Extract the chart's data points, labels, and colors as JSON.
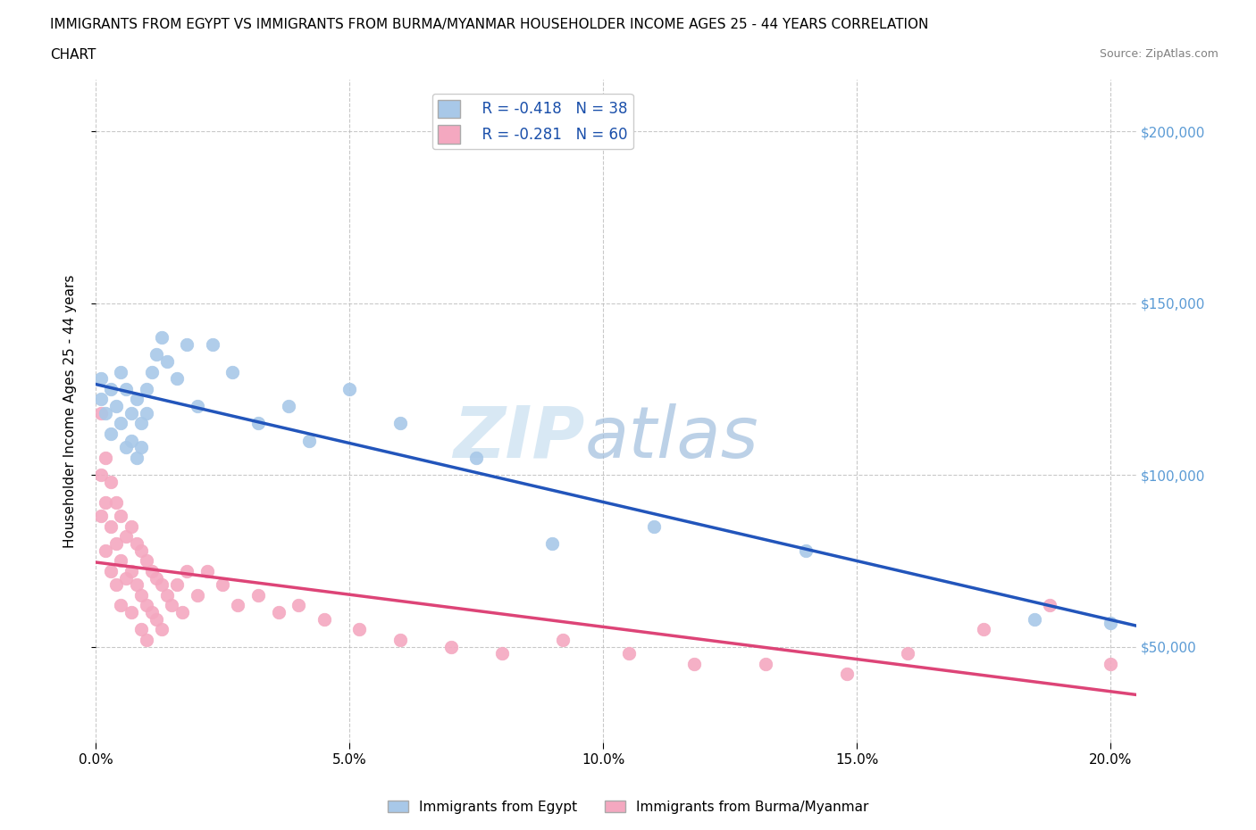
{
  "title_line1": "IMMIGRANTS FROM EGYPT VS IMMIGRANTS FROM BURMA/MYANMAR HOUSEHOLDER INCOME AGES 25 - 44 YEARS CORRELATION",
  "title_line2": "CHART",
  "source": "Source: ZipAtlas.com",
  "ylabel": "Householder Income Ages 25 - 44 years",
  "egypt_color": "#a8c8e8",
  "burma_color": "#f4a8c0",
  "egypt_line_color": "#2255bb",
  "burma_line_color": "#dd4477",
  "egypt_R": -0.418,
  "egypt_N": 38,
  "burma_R": -0.281,
  "burma_N": 60,
  "watermark_zip": "ZIP",
  "watermark_atlas": "atlas",
  "legend_egypt": "Immigrants from Egypt",
  "legend_burma": "Immigrants from Burma/Myanmar",
  "xlim": [
    0.0,
    0.205
  ],
  "ylim": [
    22000,
    215000
  ],
  "yticks": [
    50000,
    100000,
    150000,
    200000
  ],
  "xticks": [
    0.0,
    0.05,
    0.1,
    0.15,
    0.2
  ],
  "egypt_x": [
    0.001,
    0.001,
    0.002,
    0.003,
    0.003,
    0.004,
    0.005,
    0.005,
    0.006,
    0.006,
    0.007,
    0.007,
    0.008,
    0.008,
    0.009,
    0.009,
    0.01,
    0.01,
    0.011,
    0.012,
    0.013,
    0.014,
    0.016,
    0.018,
    0.02,
    0.023,
    0.027,
    0.032,
    0.038,
    0.042,
    0.05,
    0.06,
    0.075,
    0.09,
    0.11,
    0.14,
    0.185,
    0.2
  ],
  "egypt_y": [
    128000,
    122000,
    118000,
    125000,
    112000,
    120000,
    130000,
    115000,
    125000,
    108000,
    118000,
    110000,
    122000,
    105000,
    115000,
    108000,
    125000,
    118000,
    130000,
    135000,
    140000,
    133000,
    128000,
    138000,
    120000,
    138000,
    130000,
    115000,
    120000,
    110000,
    125000,
    115000,
    105000,
    80000,
    85000,
    78000,
    58000,
    57000
  ],
  "burma_x": [
    0.001,
    0.001,
    0.001,
    0.002,
    0.002,
    0.002,
    0.003,
    0.003,
    0.003,
    0.004,
    0.004,
    0.004,
    0.005,
    0.005,
    0.005,
    0.006,
    0.006,
    0.007,
    0.007,
    0.007,
    0.008,
    0.008,
    0.009,
    0.009,
    0.009,
    0.01,
    0.01,
    0.01,
    0.011,
    0.011,
    0.012,
    0.012,
    0.013,
    0.013,
    0.014,
    0.015,
    0.016,
    0.017,
    0.018,
    0.02,
    0.022,
    0.025,
    0.028,
    0.032,
    0.036,
    0.04,
    0.045,
    0.052,
    0.06,
    0.07,
    0.08,
    0.092,
    0.105,
    0.118,
    0.132,
    0.148,
    0.16,
    0.175,
    0.188,
    0.2
  ],
  "burma_y": [
    118000,
    100000,
    88000,
    105000,
    92000,
    78000,
    98000,
    85000,
    72000,
    92000,
    80000,
    68000,
    88000,
    75000,
    62000,
    82000,
    70000,
    85000,
    72000,
    60000,
    80000,
    68000,
    78000,
    65000,
    55000,
    75000,
    62000,
    52000,
    72000,
    60000,
    70000,
    58000,
    68000,
    55000,
    65000,
    62000,
    68000,
    60000,
    72000,
    65000,
    72000,
    68000,
    62000,
    65000,
    60000,
    62000,
    58000,
    55000,
    52000,
    50000,
    48000,
    52000,
    48000,
    45000,
    45000,
    42000,
    48000,
    55000,
    62000,
    45000
  ]
}
